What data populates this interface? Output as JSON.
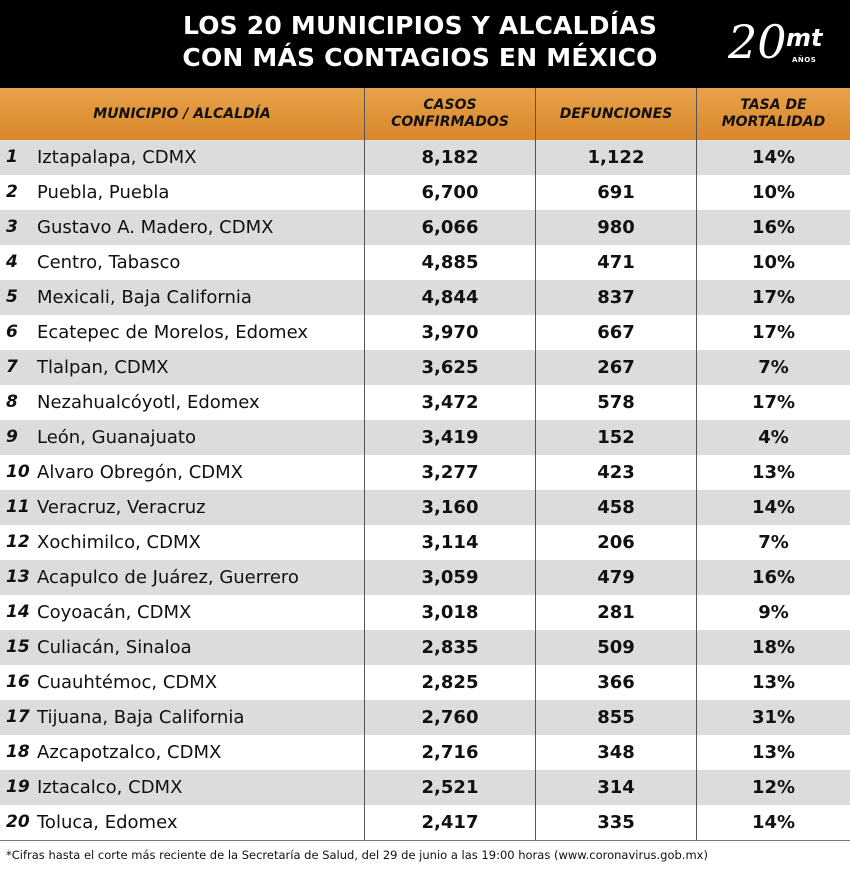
{
  "header": {
    "title_line1": "LOS 20 MUNICIPIOS Y ALCALDÍAS",
    "title_line2": "CON MÁS CONTAGIOS EN MÉXICO",
    "logo_number": "20",
    "logo_brand": "mt",
    "logo_sub": "AÑOS"
  },
  "colors": {
    "header_bg": "#000000",
    "column_header": "#e09538",
    "row_alt": "#dcdcdc"
  },
  "chart_data": {
    "type": "table",
    "columns": [
      "MUNICIPIO / ALCALDÍA",
      "CASOS CONFIRMADOS",
      "DEFUNCIONES",
      "TASA DE MORTALIDAD"
    ],
    "column_lines": {
      "c1": [
        "MUNICIPIO / ALCALDÍA"
      ],
      "c2": [
        "CASOS",
        "CONFIRMADOS"
      ],
      "c3": [
        "DEFUNCIONES"
      ],
      "c4": [
        "TASA DE",
        "MORTALIDAD"
      ]
    },
    "rows": [
      {
        "rank": "1",
        "name": "Iztapalapa, CDMX",
        "cases": "8,182",
        "deaths": "1,122",
        "rate": "14%"
      },
      {
        "rank": "2",
        "name": "Puebla, Puebla",
        "cases": "6,700",
        "deaths": "691",
        "rate": "10%"
      },
      {
        "rank": "3",
        "name": "Gustavo A. Madero, CDMX",
        "cases": "6,066",
        "deaths": "980",
        "rate": "16%"
      },
      {
        "rank": "4",
        "name": "Centro, Tabasco",
        "cases": "4,885",
        "deaths": "471",
        "rate": "10%"
      },
      {
        "rank": "5",
        "name": "Mexicali, Baja California",
        "cases": "4,844",
        "deaths": "837",
        "rate": "17%"
      },
      {
        "rank": "6",
        "name": "Ecatepec de Morelos, Edomex",
        "cases": "3,970",
        "deaths": "667",
        "rate": "17%"
      },
      {
        "rank": "7",
        "name": "Tlalpan, CDMX",
        "cases": "3,625",
        "deaths": "267",
        "rate": "7%"
      },
      {
        "rank": "8",
        "name": "Nezahualcóyotl, Edomex",
        "cases": "3,472",
        "deaths": "578",
        "rate": "17%"
      },
      {
        "rank": "9",
        "name": "León, Guanajuato",
        "cases": "3,419",
        "deaths": "152",
        "rate": "4%"
      },
      {
        "rank": "10",
        "name": "Alvaro Obregón, CDMX",
        "cases": "3,277",
        "deaths": "423",
        "rate": "13%"
      },
      {
        "rank": "11",
        "name": "Veracruz, Veracruz",
        "cases": "3,160",
        "deaths": "458",
        "rate": "14%"
      },
      {
        "rank": "12",
        "name": "Xochimilco, CDMX",
        "cases": "3,114",
        "deaths": "206",
        "rate": "7%"
      },
      {
        "rank": "13",
        "name": "Acapulco de Juárez, Guerrero",
        "cases": "3,059",
        "deaths": "479",
        "rate": "16%"
      },
      {
        "rank": "14",
        "name": "Coyoacán, CDMX",
        "cases": "3,018",
        "deaths": "281",
        "rate": "9%"
      },
      {
        "rank": "15",
        "name": "Culiacán, Sinaloa",
        "cases": "2,835",
        "deaths": "509",
        "rate": "18%"
      },
      {
        "rank": "16",
        "name": "Cuauhtémoc, CDMX",
        "cases": "2,825",
        "deaths": "366",
        "rate": "13%"
      },
      {
        "rank": "17",
        "name": "Tijuana, Baja California",
        "cases": "2,760",
        "deaths": "855",
        "rate": "31%"
      },
      {
        "rank": "18",
        "name": "Azcapotzalco, CDMX",
        "cases": "2,716",
        "deaths": "348",
        "rate": "13%"
      },
      {
        "rank": "19",
        "name": "Iztacalco, CDMX",
        "cases": "2,521",
        "deaths": "314",
        "rate": "12%"
      },
      {
        "rank": "20",
        "name": "Toluca, Edomex",
        "cases": "2,417",
        "deaths": "335",
        "rate": "14%"
      }
    ]
  },
  "footnote": "*Cifras hasta el corte más reciente de la Secretaría de Salud, del 29 de junio a las 19:00 horas (www.coronavirus.gob.mx)"
}
